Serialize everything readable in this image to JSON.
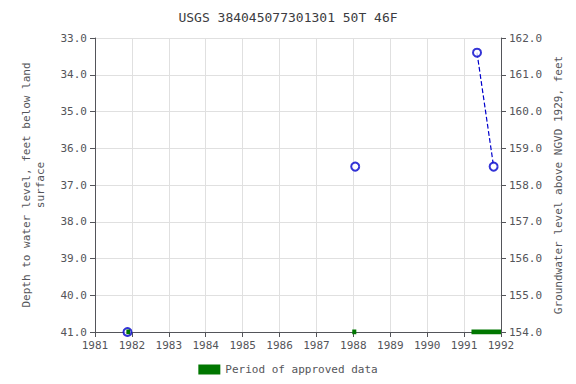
{
  "chart_data": {
    "type": "scatter",
    "title": "USGS 384045077301301 50T 46F",
    "ylabel": "Depth to water level, feet below land\nsurface",
    "y2label": "Groundwater level above NGVD 1929, feet",
    "xlim": [
      1981,
      1992
    ],
    "xticks": [
      1981,
      1982,
      1983,
      1984,
      1985,
      1986,
      1987,
      1988,
      1989,
      1990,
      1991,
      1992
    ],
    "ylim": [
      41.0,
      33.0
    ],
    "yticks": [
      {
        "value": 33.0,
        "label": "33.0"
      },
      {
        "value": 34.0,
        "label": "34.0"
      },
      {
        "value": 35.0,
        "label": "35.0"
      },
      {
        "value": 36.0,
        "label": "36.0"
      },
      {
        "value": 37.0,
        "label": "37.0"
      },
      {
        "value": 38.0,
        "label": "38.0"
      },
      {
        "value": 39.0,
        "label": "39.0"
      },
      {
        "value": 40.0,
        "label": "40.0"
      },
      {
        "value": 41.0,
        "label": "41.0"
      }
    ],
    "y2lim": [
      154.0,
      162.0
    ],
    "y2ticks": [
      {
        "value": 162.0,
        "label": "162.0"
      },
      {
        "value": 161.0,
        "label": "161.0"
      },
      {
        "value": 160.0,
        "label": "160.0"
      },
      {
        "value": 159.0,
        "label": "159.0"
      },
      {
        "value": 158.0,
        "label": "158.0"
      },
      {
        "value": 157.0,
        "label": "157.0"
      },
      {
        "value": 156.0,
        "label": "156.0"
      },
      {
        "value": 155.0,
        "label": "155.0"
      },
      {
        "value": 154.0,
        "label": "154.0"
      }
    ],
    "grid": true,
    "legend": "bottom",
    "series": [
      {
        "type": "scatter",
        "marker": "open_circle",
        "color": "#0000cc",
        "x": [
          1981.88,
          1988.05,
          1991.35,
          1991.8
        ],
        "values": [
          41.0,
          36.5,
          33.4,
          36.5
        ]
      },
      {
        "type": "line",
        "line_style": "dashed",
        "color": "#0000cc",
        "x": [
          1991.35,
          1991.8
        ],
        "values": [
          33.4,
          36.5
        ]
      },
      {
        "name": "Period of approved data",
        "type": "period_bars",
        "color": "#007700",
        "x_start": [
          1981.85,
          1987.97,
          1991.2
        ],
        "x_end": [
          1981.95,
          1988.08,
          1992.0
        ],
        "values": [
          41.0,
          41.0,
          41.0
        ]
      }
    ]
  }
}
